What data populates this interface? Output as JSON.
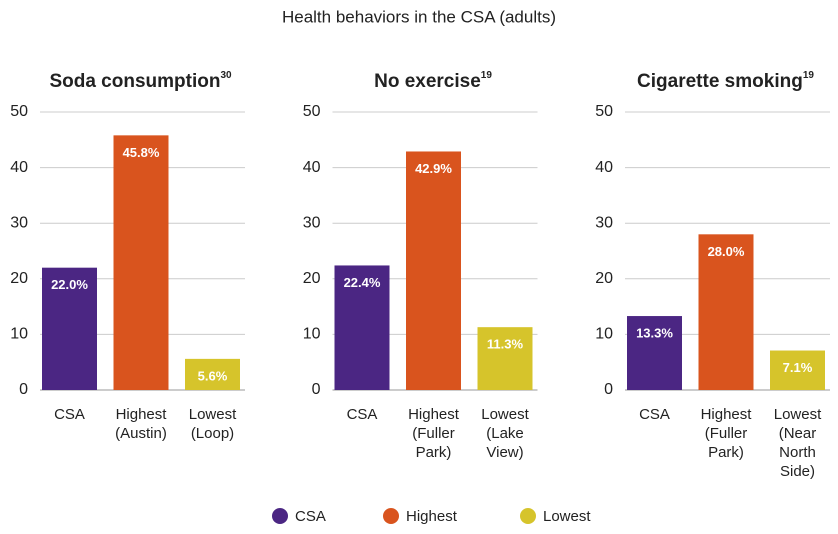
{
  "title": "Health behaviors in the CSA (adults)",
  "legend": [
    {
      "name": "CSA",
      "color": "#4b2683"
    },
    {
      "name": "Highest",
      "color": "#d9541e"
    },
    {
      "name": "Lowest",
      "color": "#d6c42b"
    }
  ],
  "chart_data": [
    {
      "type": "bar",
      "title": "Soda consumption",
      "footnote": "30",
      "categories": [
        "CSA",
        "Highest (Austin)",
        "Lowest (Loop)"
      ],
      "values": [
        22.0,
        45.8,
        5.6
      ],
      "value_labels": [
        "22.0%",
        "45.8%",
        "5.6%"
      ],
      "ylim": [
        0,
        50
      ],
      "yticks": [
        0,
        10,
        20,
        30,
        40,
        50
      ],
      "grid": true
    },
    {
      "type": "bar",
      "title": "No exercise",
      "footnote": "19",
      "categories": [
        "CSA",
        "Highest (Fuller Park)",
        "Lowest (Lake View)"
      ],
      "values": [
        22.4,
        42.9,
        11.3
      ],
      "value_labels": [
        "22.4%",
        "42.9%",
        "11.3%"
      ],
      "ylim": [
        0,
        50
      ],
      "yticks": [
        0,
        10,
        20,
        30,
        40,
        50
      ],
      "grid": true
    },
    {
      "type": "bar",
      "title": "Cigarette smoking",
      "footnote": "19",
      "categories": [
        "CSA",
        "Highest (Fuller Park)",
        "Lowest (Near North Side)"
      ],
      "values": [
        13.3,
        28.0,
        7.1
      ],
      "value_labels": [
        "13.3%",
        "28.0%",
        "7.1%"
      ],
      "ylim": [
        0,
        50
      ],
      "yticks": [
        0,
        10,
        20,
        30,
        40,
        50
      ],
      "grid": true
    }
  ]
}
